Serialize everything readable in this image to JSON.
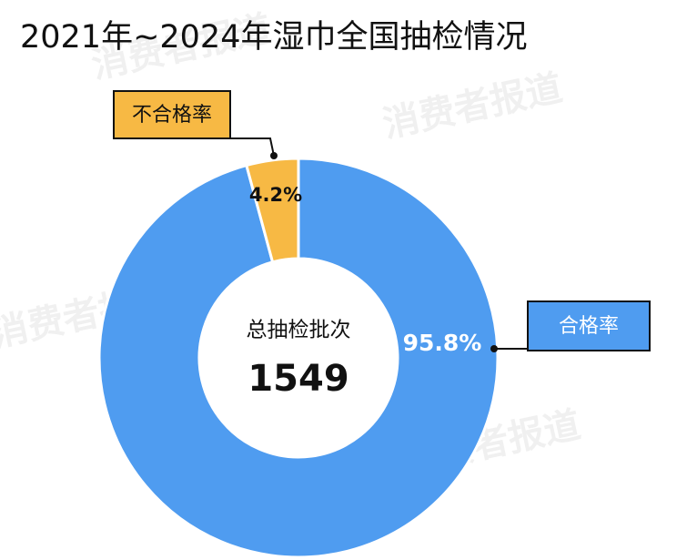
{
  "chart_data": {
    "type": "donut",
    "title": "2021年~2024年湿巾全国抽检情况",
    "categories": [
      "合格率",
      "不合格率"
    ],
    "values": [
      95.8,
      4.2
    ],
    "value_labels": [
      "95.8%",
      "4.2%"
    ],
    "colors": [
      "#4f9cf0",
      "#f7b944"
    ],
    "center_label": "总抽检批次",
    "center_value": "1549",
    "watermark": "消费者报道"
  }
}
